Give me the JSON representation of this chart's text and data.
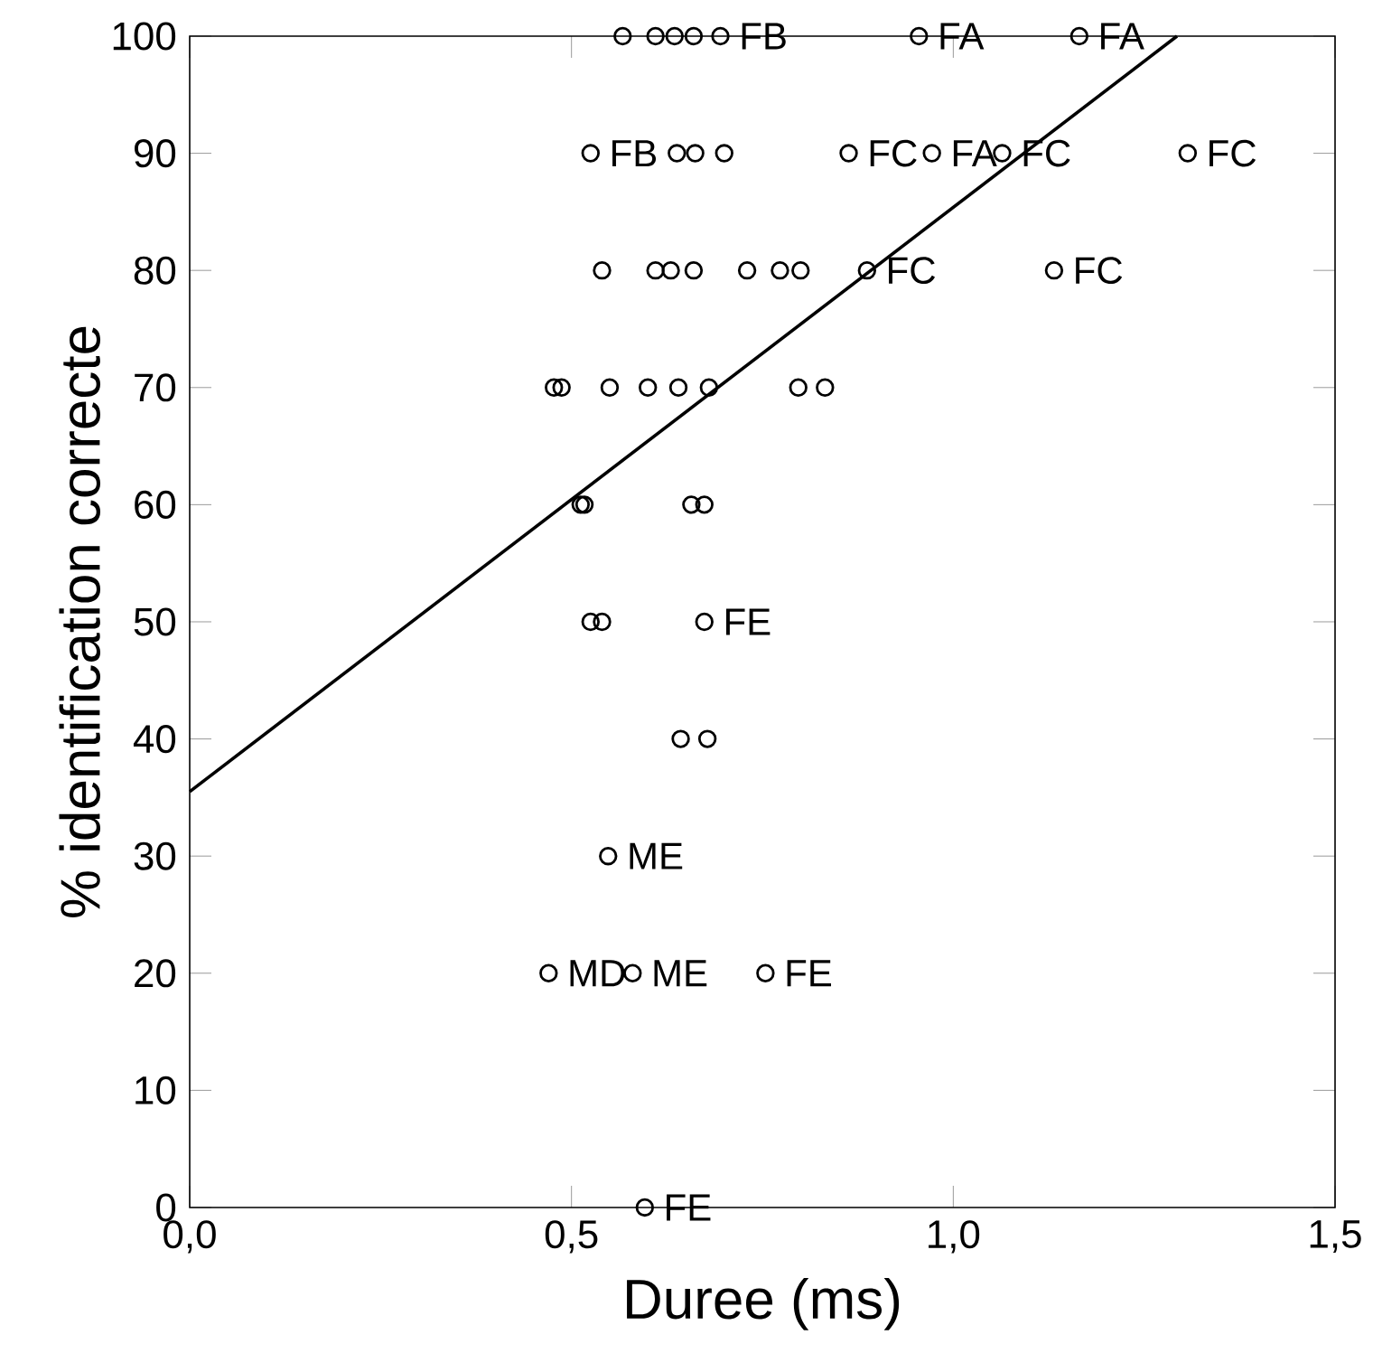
{
  "chart_data": {
    "type": "scatter",
    "xlabel": "Duree (ms)",
    "ylabel": "% identification correcte",
    "xlim": [
      0,
      1.5
    ],
    "ylim": [
      0,
      100
    ],
    "xticks": [
      {
        "value": 0,
        "label": "0,0"
      },
      {
        "value": 0.5,
        "label": "0,5"
      },
      {
        "value": 1,
        "label": "1,0"
      },
      {
        "value": 1.5,
        "label": "1,5"
      }
    ],
    "yticks": [
      0,
      10,
      20,
      30,
      40,
      50,
      60,
      70,
      80,
      90,
      100
    ],
    "grid": false,
    "series": [
      {
        "type": "scatter",
        "color": "#000000",
        "marker": "circle",
        "x": [
          0.567,
          0.61,
          0.635,
          0.66,
          0.695,
          0.955,
          1.165,
          0.525,
          0.638,
          0.662,
          0.7,
          0.863,
          0.972,
          1.064,
          1.307,
          0.54,
          0.61,
          0.63,
          0.66,
          0.73,
          0.773,
          0.8,
          0.887,
          1.132,
          0.477,
          0.487,
          0.55,
          0.6,
          0.64,
          0.68,
          0.797,
          0.832,
          0.512,
          0.517,
          0.657,
          0.674,
          0.525,
          0.54,
          0.674,
          0.643,
          0.678,
          0.548,
          0.47,
          0.58,
          0.754,
          0.596
        ],
        "values": [
          100,
          100,
          100,
          100,
          100,
          100,
          100,
          90,
          90,
          90,
          90,
          90,
          90,
          90,
          90,
          80,
          80,
          80,
          80,
          80,
          80,
          80,
          80,
          80,
          70,
          70,
          70,
          70,
          70,
          70,
          70,
          70,
          60,
          60,
          60,
          60,
          50,
          50,
          50,
          40,
          40,
          30,
          20,
          20,
          20,
          0
        ]
      },
      {
        "type": "line",
        "color": "#000000",
        "marker": "none",
        "line_style": "solid",
        "x": [
          0,
          1.293
        ],
        "values": [
          35.5,
          100
        ]
      }
    ],
    "annotations": [
      {
        "text": "FB",
        "x": 0.695,
        "y": 100
      },
      {
        "text": "FA",
        "x": 0.955,
        "y": 100
      },
      {
        "text": "FA",
        "x": 1.165,
        "y": 100
      },
      {
        "text": "FB",
        "x": 0.525,
        "y": 90
      },
      {
        "text": "FC",
        "x": 0.863,
        "y": 90
      },
      {
        "text": "FA",
        "x": 0.972,
        "y": 90
      },
      {
        "text": "FC",
        "x": 1.064,
        "y": 90
      },
      {
        "text": "FC",
        "x": 1.307,
        "y": 90
      },
      {
        "text": "FC",
        "x": 0.887,
        "y": 80
      },
      {
        "text": "FC",
        "x": 1.132,
        "y": 80
      },
      {
        "text": "FE",
        "x": 0.674,
        "y": 50
      },
      {
        "text": "ME",
        "x": 0.548,
        "y": 30
      },
      {
        "text": "MD",
        "x": 0.47,
        "y": 20
      },
      {
        "text": "ME",
        "x": 0.58,
        "y": 20
      },
      {
        "text": "FE",
        "x": 0.754,
        "y": 20
      },
      {
        "text": "FE",
        "x": 0.596,
        "y": 0
      }
    ]
  }
}
